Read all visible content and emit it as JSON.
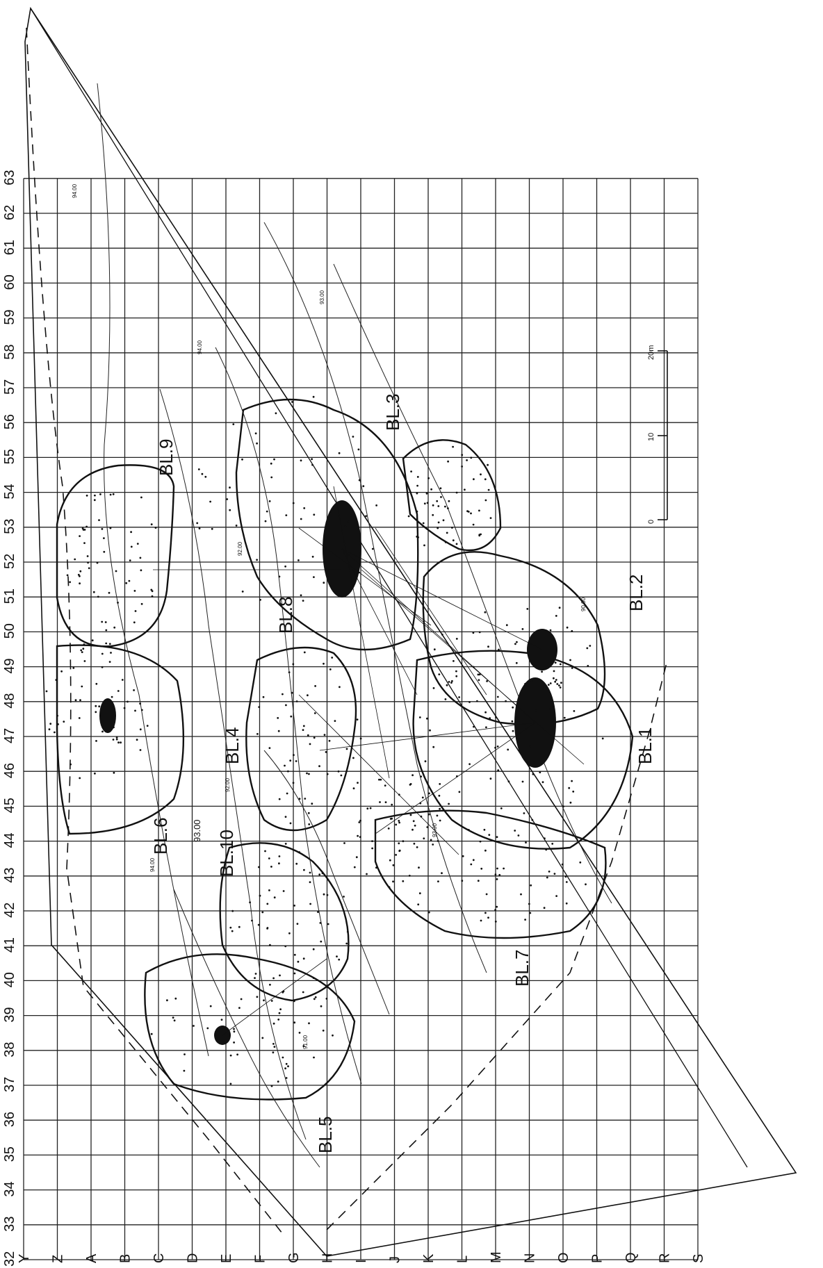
{
  "grid": {
    "rows": [
      "Y",
      "Z",
      "A",
      "B",
      "C",
      "D",
      "E",
      "F",
      "G",
      "H",
      "I",
      "J",
      "K",
      "L",
      "M",
      "N",
      "O",
      "P",
      "Q",
      "R",
      "S"
    ],
    "cols": [
      "32",
      "33",
      "34",
      "35",
      "36",
      "37",
      "38",
      "39",
      "40",
      "41",
      "42",
      "43",
      "44",
      "45",
      "46",
      "47",
      "48",
      "49",
      "50",
      "51",
      "52",
      "53",
      "54",
      "55",
      "56",
      "57",
      "58",
      "59",
      "60",
      "61",
      "62",
      "63"
    ]
  },
  "blocks": [
    {
      "id": "bl1",
      "label": "BL.1"
    },
    {
      "id": "bl2",
      "label": "BL.2"
    },
    {
      "id": "bl3",
      "label": "BL.3"
    },
    {
      "id": "bl4",
      "label": "BL.4"
    },
    {
      "id": "bl5",
      "label": "BL.5"
    },
    {
      "id": "bl6",
      "label": "BL.6"
    },
    {
      "id": "bl7",
      "label": "BL.7"
    },
    {
      "id": "bl8",
      "label": "BL.8"
    },
    {
      "id": "bl9",
      "label": "BL.9"
    },
    {
      "id": "bl10",
      "label": "BL.10"
    }
  ],
  "contours": {
    "major": "93.00",
    "minor": [
      "94.00",
      "93.00",
      "92.00",
      "91.00",
      "90.00"
    ]
  },
  "scale_bar": {
    "ticks": [
      "0",
      "10",
      "20m"
    ]
  },
  "colors": {
    "ink": "#111111",
    "grid": "#222222",
    "paper": "#ffffff"
  }
}
